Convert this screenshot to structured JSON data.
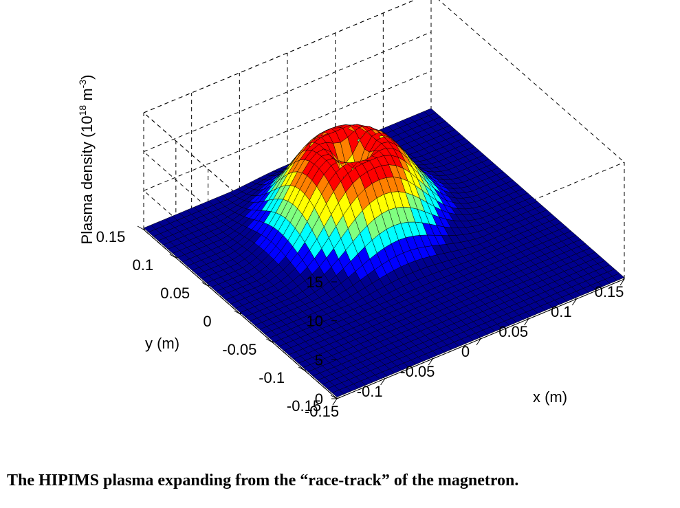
{
  "chart_data": {
    "type": "surface3d",
    "title": "",
    "xlabel": "x (m)",
    "ylabel": "y (m)",
    "zlabel": {
      "text": "Plasma density (10",
      "sup1": "18",
      "mid": " m",
      "sup2": "-3",
      "end": ")"
    },
    "xlim": [
      -0.15,
      0.15
    ],
    "ylim": [
      -0.15,
      0.15
    ],
    "zlim": [
      0,
      15
    ],
    "x_ticks": [
      "-0.15",
      "-0.1",
      "-0.05",
      "0",
      "0.05",
      "0.1",
      "0.15"
    ],
    "y_ticks": [
      "-0.15",
      "-0.1",
      "-0.05",
      "0",
      "0.05",
      "0.1",
      "0.15"
    ],
    "z_ticks": [
      "0",
      "5",
      "10",
      "15"
    ],
    "grid": true,
    "colormap": "jet",
    "colors": [
      "#00008f",
      "#0000ff",
      "#00ffff",
      "#80ff80",
      "#ffff00",
      "#ff8000",
      "#ff0000",
      "#800000"
    ],
    "surface": {
      "description_model": "annular ring profile",
      "ring_center": [
        0.0,
        0.05
      ],
      "ring_radius": 0.025,
      "ring_width": 0.045,
      "peak_density": 10.5,
      "grid_points": 41
    }
  },
  "caption": "The HIPIMS plasma expanding from the “race-track” of the magnetron."
}
